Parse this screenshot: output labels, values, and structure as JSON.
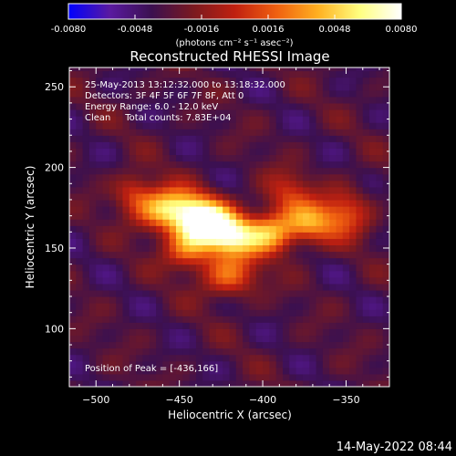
{
  "colorbar": {
    "ticks": [
      "-0.0080",
      "-0.0048",
      "-0.0016",
      "0.0016",
      "0.0048",
      "0.0080"
    ],
    "tick_values": [
      -0.008,
      -0.0048,
      -0.0016,
      0.0016,
      0.0048,
      0.008
    ],
    "range": [
      -0.008,
      0.008
    ],
    "units": "(photons cm⁻² s⁻¹ asec⁻²)",
    "colormap": [
      "#0000ff",
      "#5a1aa0",
      "#3b1050",
      "#7a1a20",
      "#c02010",
      "#f06010",
      "#ffb020",
      "#ffff80",
      "#ffffff"
    ]
  },
  "chart_data": {
    "type": "heatmap",
    "title": "Reconstructed RHESSI Image",
    "xlabel": "Heliocentric X (arcsec)",
    "ylabel": "Heliocentric Y (arcsec)",
    "xlim": [
      -516,
      -324
    ],
    "ylim": [
      64,
      262
    ],
    "xticks": [
      -500,
      -450,
      -400,
      -350
    ],
    "yticks": [
      100,
      150,
      200,
      250
    ],
    "background_level": -0.0035,
    "sources": [
      {
        "x": -436,
        "y": 166,
        "sx": 12,
        "sy": 10,
        "amp": 0.0125
      },
      {
        "x": -458,
        "y": 175,
        "sx": 13,
        "sy": 9,
        "amp": 0.0085
      },
      {
        "x": -418,
        "y": 157,
        "sx": 11,
        "sy": 9,
        "amp": 0.0085
      },
      {
        "x": -395,
        "y": 160,
        "sx": 10,
        "sy": 9,
        "amp": 0.007
      },
      {
        "x": -372,
        "y": 166,
        "sx": 11,
        "sy": 9,
        "amp": 0.0065
      },
      {
        "x": -350,
        "y": 172,
        "sx": 10,
        "sy": 11,
        "amp": 0.0045
      },
      {
        "x": -420,
        "y": 133,
        "sx": 12,
        "sy": 9,
        "amp": 0.0055
      },
      {
        "x": -446,
        "y": 148,
        "sx": 10,
        "sy": 8,
        "amp": 0.0045
      },
      {
        "x": -385,
        "y": 185,
        "sx": 10,
        "sy": 9,
        "amp": 0.0035
      },
      {
        "x": -478,
        "y": 186,
        "sx": 8,
        "sy": 8,
        "amp": 0.0035
      }
    ],
    "annotations": {
      "date_line": "25-May-2013 13:12:32.000 to 13:18:32.000",
      "detectors": "Detectors: 3F 4F 5F 6F 7F 8F, Att 0",
      "energy": "Energy Range: 6.0 - 12.0 keV",
      "clean": "Clean     Total counts: 7.83E+04",
      "peak": "Position of Peak = [-436,166]"
    }
  },
  "footer": {
    "timestamp": "14-May-2022 08:44"
  }
}
